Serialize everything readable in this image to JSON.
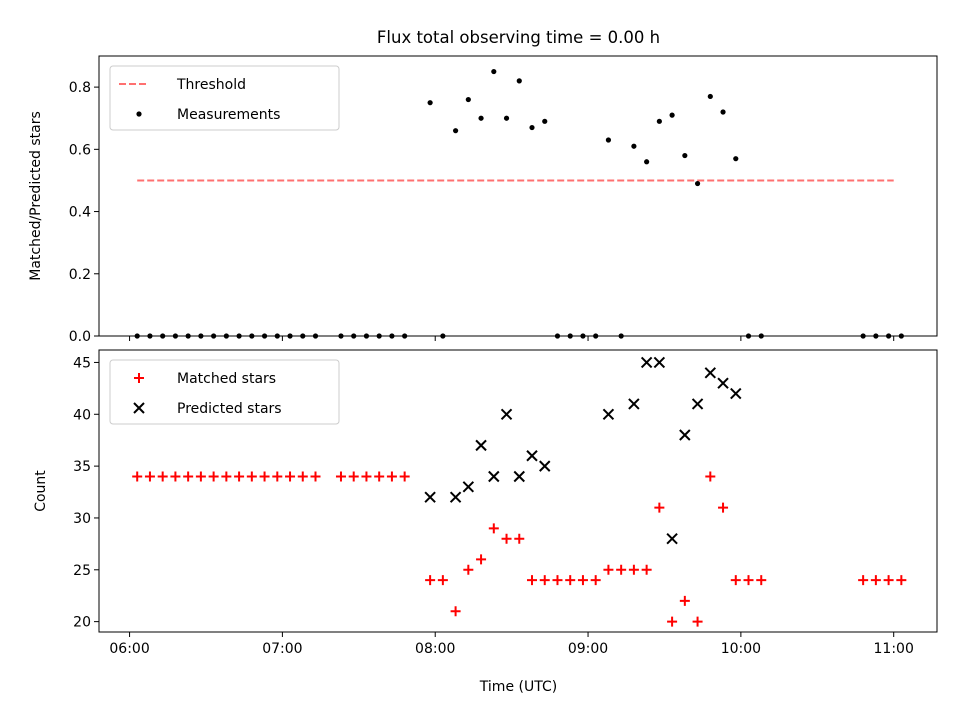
{
  "title": "Flux total observing time = 0.00 h",
  "xlabel": "Time (UTC)",
  "x_ticks": [
    "06:00",
    "07:00",
    "08:00",
    "09:00",
    "10:00",
    "11:00"
  ],
  "chart_data": [
    {
      "type": "scatter",
      "title": "Flux total observing time = 0.00 h",
      "ylabel": "Matched/Predicted stars",
      "ylim": [
        0,
        0.9
      ],
      "y_ticks": [
        "0.0",
        "0.2",
        "0.4",
        "0.6",
        "0.8"
      ],
      "legend_position": "top-left",
      "threshold": {
        "name": "Threshold",
        "value": 0.5,
        "x_range": [
          "06:03",
          "11:00"
        ],
        "color": "#ff7070",
        "style": "dashed"
      },
      "series": [
        {
          "name": "Measurements",
          "color": "#000000",
          "marker": "dot",
          "points": [
            [
              "06:03",
              0.0
            ],
            [
              "06:08",
              0.0
            ],
            [
              "06:13",
              0.0
            ],
            [
              "06:18",
              0.0
            ],
            [
              "06:23",
              0.0
            ],
            [
              "06:28",
              0.0
            ],
            [
              "06:33",
              0.0
            ],
            [
              "06:38",
              0.0
            ],
            [
              "06:43",
              0.0
            ],
            [
              "06:48",
              0.0
            ],
            [
              "06:53",
              0.0
            ],
            [
              "06:58",
              0.0
            ],
            [
              "07:03",
              0.0
            ],
            [
              "07:08",
              0.0
            ],
            [
              "07:13",
              0.0
            ],
            [
              "07:23",
              0.0
            ],
            [
              "07:28",
              0.0
            ],
            [
              "07:33",
              0.0
            ],
            [
              "07:38",
              0.0
            ],
            [
              "07:43",
              0.0
            ],
            [
              "07:48",
              0.0
            ],
            [
              "07:58",
              0.75
            ],
            [
              "08:03",
              0.0
            ],
            [
              "08:08",
              0.66
            ],
            [
              "08:13",
              0.76
            ],
            [
              "08:18",
              0.7
            ],
            [
              "08:23",
              0.85
            ],
            [
              "08:28",
              0.7
            ],
            [
              "08:33",
              0.82
            ],
            [
              "08:38",
              0.67
            ],
            [
              "08:43",
              0.69
            ],
            [
              "08:48",
              0.0
            ],
            [
              "08:53",
              0.0
            ],
            [
              "08:58",
              0.0
            ],
            [
              "09:03",
              0.0
            ],
            [
              "09:08",
              0.63
            ],
            [
              "09:13",
              0.0
            ],
            [
              "09:18",
              0.61
            ],
            [
              "09:23",
              0.56
            ],
            [
              "09:28",
              0.69
            ],
            [
              "09:33",
              0.71
            ],
            [
              "09:38",
              0.58
            ],
            [
              "09:43",
              0.49
            ],
            [
              "09:48",
              0.77
            ],
            [
              "09:53",
              0.72
            ],
            [
              "09:58",
              0.57
            ],
            [
              "10:03",
              0.0
            ],
            [
              "10:08",
              0.0
            ],
            [
              "10:48",
              0.0
            ],
            [
              "10:53",
              0.0
            ],
            [
              "10:58",
              0.0
            ],
            [
              "11:03",
              0.0
            ]
          ]
        }
      ]
    },
    {
      "type": "scatter",
      "ylabel": "Count",
      "ylim": [
        19,
        46.2
      ],
      "y_ticks": [
        "20",
        "25",
        "30",
        "35",
        "40",
        "45"
      ],
      "legend_position": "top-left",
      "series": [
        {
          "name": "Matched stars",
          "color": "#ff0000",
          "marker": "plus",
          "points": [
            [
              "06:03",
              34
            ],
            [
              "06:08",
              34
            ],
            [
              "06:13",
              34
            ],
            [
              "06:18",
              34
            ],
            [
              "06:23",
              34
            ],
            [
              "06:28",
              34
            ],
            [
              "06:33",
              34
            ],
            [
              "06:38",
              34
            ],
            [
              "06:43",
              34
            ],
            [
              "06:48",
              34
            ],
            [
              "06:53",
              34
            ],
            [
              "06:58",
              34
            ],
            [
              "07:03",
              34
            ],
            [
              "07:08",
              34
            ],
            [
              "07:13",
              34
            ],
            [
              "07:23",
              34
            ],
            [
              "07:28",
              34
            ],
            [
              "07:33",
              34
            ],
            [
              "07:38",
              34
            ],
            [
              "07:43",
              34
            ],
            [
              "07:48",
              34
            ],
            [
              "07:58",
              24
            ],
            [
              "08:03",
              24
            ],
            [
              "08:08",
              21
            ],
            [
              "08:13",
              25
            ],
            [
              "08:18",
              26
            ],
            [
              "08:23",
              29
            ],
            [
              "08:28",
              28
            ],
            [
              "08:33",
              28
            ],
            [
              "08:38",
              24
            ],
            [
              "08:43",
              24
            ],
            [
              "08:48",
              24
            ],
            [
              "08:53",
              24
            ],
            [
              "08:58",
              24
            ],
            [
              "09:03",
              24
            ],
            [
              "09:08",
              25
            ],
            [
              "09:13",
              25
            ],
            [
              "09:18",
              25
            ],
            [
              "09:23",
              25
            ],
            [
              "09:28",
              31
            ],
            [
              "09:33",
              20
            ],
            [
              "09:38",
              22
            ],
            [
              "09:43",
              20
            ],
            [
              "09:48",
              34
            ],
            [
              "09:53",
              31
            ],
            [
              "09:58",
              24
            ],
            [
              "10:03",
              24
            ],
            [
              "10:08",
              24
            ],
            [
              "10:48",
              24
            ],
            [
              "10:53",
              24
            ],
            [
              "10:58",
              24
            ],
            [
              "11:03",
              24
            ]
          ]
        },
        {
          "name": "Predicted stars",
          "color": "#000000",
          "marker": "x",
          "points": [
            [
              "07:58",
              32
            ],
            [
              "08:08",
              32
            ],
            [
              "08:13",
              33
            ],
            [
              "08:18",
              37
            ],
            [
              "08:23",
              34
            ],
            [
              "08:28",
              40
            ],
            [
              "08:33",
              34
            ],
            [
              "08:38",
              36
            ],
            [
              "08:43",
              35
            ],
            [
              "09:08",
              40
            ],
            [
              "09:18",
              41
            ],
            [
              "09:23",
              45
            ],
            [
              "09:28",
              45
            ],
            [
              "09:33",
              28
            ],
            [
              "09:38",
              38
            ],
            [
              "09:43",
              41
            ],
            [
              "09:48",
              44
            ],
            [
              "09:53",
              43
            ],
            [
              "09:58",
              42
            ]
          ]
        }
      ]
    }
  ]
}
